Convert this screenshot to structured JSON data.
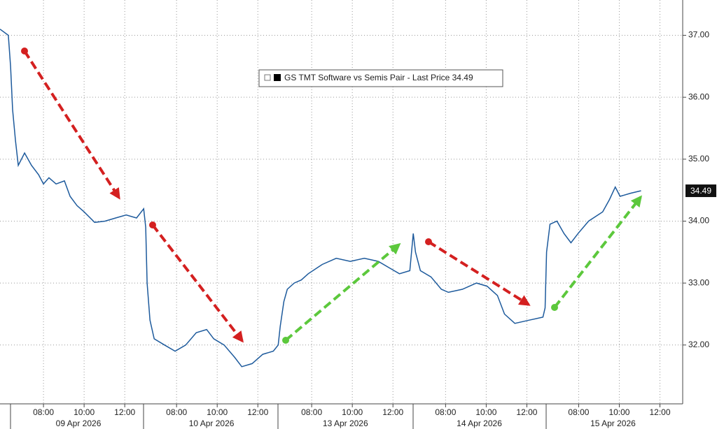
{
  "chart_data": {
    "type": "line",
    "xlim": [
      0,
      33.6
    ],
    "ylim": [
      31.05,
      37.57
    ],
    "xticks": [
      {
        "value": 2.14,
        "label": "08:00"
      },
      {
        "value": 4.14,
        "label": "10:00"
      },
      {
        "value": 6.14,
        "label": "12:00"
      },
      {
        "value": 8.69,
        "label": "08:00"
      },
      {
        "value": 10.69,
        "label": "10:00"
      },
      {
        "value": 12.69,
        "label": "12:00"
      },
      {
        "value": 15.34,
        "label": "08:00"
      },
      {
        "value": 17.34,
        "label": "10:00"
      },
      {
        "value": 19.34,
        "label": "12:00"
      },
      {
        "value": 21.93,
        "label": "08:00"
      },
      {
        "value": 23.93,
        "label": "10:00"
      },
      {
        "value": 25.93,
        "label": "12:00"
      },
      {
        "value": 28.48,
        "label": "08:00"
      },
      {
        "value": 30.48,
        "label": "10:00"
      },
      {
        "value": 32.48,
        "label": "12:00"
      }
    ],
    "day_labels": [
      {
        "value": 3.86,
        "label": "09 Apr 2026"
      },
      {
        "value": 10.41,
        "label": "10 Apr 2026"
      },
      {
        "value": 17.0,
        "label": "13 Apr 2026"
      },
      {
        "value": 23.59,
        "label": "14 Apr 2026"
      },
      {
        "value": 30.17,
        "label": "15 Apr 2026"
      }
    ],
    "yticks": [
      {
        "value": 32,
        "label": "32.00"
      },
      {
        "value": 33,
        "label": "33.00"
      },
      {
        "value": 34,
        "label": "34.00"
      },
      {
        "value": 35,
        "label": "35.00"
      },
      {
        "value": 36,
        "label": "36.00"
      },
      {
        "value": 37,
        "label": "37.00"
      }
    ],
    "grid": true,
    "x": [
      0,
      0.41,
      0.52,
      0.62,
      0.76,
      0.9,
      1.21,
      1.55,
      1.9,
      2.14,
      2.41,
      2.76,
      3.17,
      3.45,
      3.79,
      4.14,
      4.66,
      5.17,
      5.69,
      6.21,
      6.72,
      7.07,
      7.17,
      7.24,
      7.38,
      7.59,
      8.1,
      8.62,
      9.14,
      9.66,
      10.17,
      10.52,
      11.03,
      11.55,
      11.9,
      12.41,
      12.93,
      13.45,
      13.69,
      13.79,
      13.97,
      14.14,
      14.48,
      14.83,
      15.17,
      15.86,
      16.55,
      17.24,
      17.93,
      18.62,
      19.14,
      19.66,
      20.17,
      20.34,
      20.45,
      20.69,
      21.21,
      21.72,
      22.07,
      22.76,
      23.45,
      23.97,
      24.48,
      24.83,
      25.34,
      26.03,
      26.72,
      26.83,
      26.9,
      27.07,
      27.41,
      27.76,
      28.1,
      28.45,
      28.97,
      29.66,
      30.0,
      30.28,
      30.52,
      31.03,
      31.55
    ],
    "series": [
      {
        "name": "GS TMT Software vs Semis Pair - Last Price 34.49",
        "color": "#1d5a9c",
        "values": [
          37.1,
          37.0,
          36.5,
          35.8,
          35.3,
          34.9,
          35.1,
          34.9,
          34.75,
          34.6,
          34.7,
          34.6,
          34.65,
          34.4,
          34.25,
          34.15,
          33.98,
          34.0,
          34.05,
          34.1,
          34.05,
          34.2,
          33.9,
          33.0,
          32.4,
          32.1,
          32.0,
          31.9,
          32.0,
          32.2,
          32.25,
          32.1,
          32.0,
          31.8,
          31.65,
          31.7,
          31.85,
          31.9,
          32.0,
          32.3,
          32.7,
          32.9,
          33.0,
          33.05,
          33.15,
          33.3,
          33.4,
          33.35,
          33.4,
          33.35,
          33.25,
          33.15,
          33.2,
          33.8,
          33.5,
          33.2,
          33.1,
          32.9,
          32.85,
          32.9,
          33.0,
          32.95,
          32.8,
          32.5,
          32.35,
          32.4,
          32.45,
          32.6,
          33.5,
          33.95,
          34.0,
          33.8,
          33.65,
          33.8,
          34.0,
          34.15,
          34.35,
          34.55,
          34.4,
          34.45,
          34.49
        ]
      }
    ],
    "last_value": 34.49
  }
}
